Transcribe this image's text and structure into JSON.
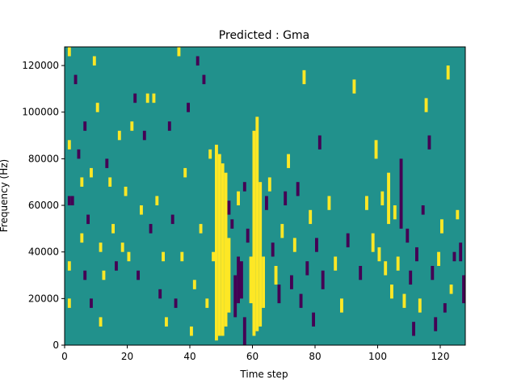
{
  "chart_data": {
    "type": "heatmap",
    "title": "Predicted : Gma",
    "xlabel": "Time step",
    "ylabel": "Frequency (Hz)",
    "xlim": [
      0,
      128
    ],
    "ylim": [
      0,
      128000
    ],
    "x_ticks": [
      0,
      20,
      40,
      60,
      80,
      100,
      120
    ],
    "y_ticks": [
      0,
      20000,
      40000,
      60000,
      80000,
      100000,
      120000
    ],
    "n_time_steps": 128,
    "n_freq_bins": 128,
    "cell_levels": [
      "background",
      "high",
      "low"
    ],
    "colors": {
      "background": "#21918c",
      "high": "#fde725",
      "low": "#440154"
    },
    "cells": [
      {
        "t": 48,
        "f0": 2000,
        "f1": 86000,
        "level": "high"
      },
      {
        "t": 49,
        "f0": 4000,
        "f1": 82000,
        "level": "high"
      },
      {
        "t": 50,
        "f0": 4000,
        "f1": 78000,
        "level": "high"
      },
      {
        "t": 51,
        "f0": 8000,
        "f1": 74000,
        "level": "high"
      },
      {
        "t": 52,
        "f0": 14000,
        "f1": 46000,
        "level": "high"
      },
      {
        "t": 55,
        "f0": 18000,
        "f1": 38000,
        "level": "low"
      },
      {
        "t": 56,
        "f0": 20000,
        "f1": 36000,
        "level": "low"
      },
      {
        "t": 57,
        "f0": 0,
        "f1": 12000,
        "level": "low"
      },
      {
        "t": 60,
        "f0": 4000,
        "f1": 92000,
        "level": "high"
      },
      {
        "t": 61,
        "f0": 6000,
        "f1": 98000,
        "level": "high"
      },
      {
        "t": 62,
        "f0": 8000,
        "f1": 70000,
        "level": "high"
      },
      {
        "t": 63,
        "f0": 16000,
        "f1": 38000,
        "level": "high"
      },
      {
        "t": 59,
        "f0": 18000,
        "f1": 38000,
        "level": "high"
      },
      {
        "t": 54,
        "f0": 12000,
        "f1": 30000,
        "level": "low"
      },
      {
        "t": 53,
        "f0": 50000,
        "f1": 54000,
        "level": "low"
      },
      {
        "t": 58,
        "f0": 44000,
        "f1": 50000,
        "level": "low"
      },
      {
        "t": 52,
        "f0": 56000,
        "f1": 62000,
        "level": "low"
      },
      {
        "t": 55,
        "f0": 60000,
        "f1": 66000,
        "level": "high"
      },
      {
        "t": 57,
        "f0": 66000,
        "f1": 70000,
        "level": "low"
      },
      {
        "t": 64,
        "f0": 58000,
        "f1": 64000,
        "level": "low"
      },
      {
        "t": 66,
        "f0": 38000,
        "f1": 44000,
        "level": "low"
      },
      {
        "t": 65,
        "f0": 66000,
        "f1": 72000,
        "level": "high"
      },
      {
        "t": 67,
        "f0": 26000,
        "f1": 34000,
        "level": "high"
      },
      {
        "t": 68,
        "f0": 18000,
        "f1": 26000,
        "level": "low"
      },
      {
        "t": 69,
        "f0": 46000,
        "f1": 52000,
        "level": "high"
      },
      {
        "t": 70,
        "f0": 60000,
        "f1": 66000,
        "level": "low"
      },
      {
        "t": 71,
        "f0": 76000,
        "f1": 82000,
        "level": "high"
      },
      {
        "t": 72,
        "f0": 24000,
        "f1": 30000,
        "level": "low"
      },
      {
        "t": 73,
        "f0": 40000,
        "f1": 46000,
        "level": "high"
      },
      {
        "t": 74,
        "f0": 64000,
        "f1": 70000,
        "level": "low"
      },
      {
        "t": 75,
        "f0": 16000,
        "f1": 22000,
        "level": "low"
      },
      {
        "t": 76,
        "f0": 112000,
        "f1": 118000,
        "level": "high"
      },
      {
        "t": 77,
        "f0": 30000,
        "f1": 36000,
        "level": "low"
      },
      {
        "t": 78,
        "f0": 52000,
        "f1": 58000,
        "level": "high"
      },
      {
        "t": 79,
        "f0": 8000,
        "f1": 14000,
        "level": "low"
      },
      {
        "t": 80,
        "f0": 40000,
        "f1": 46000,
        "level": "low"
      },
      {
        "t": 81,
        "f0": 84000,
        "f1": 90000,
        "level": "low"
      },
      {
        "t": 82,
        "f0": 24000,
        "f1": 32000,
        "level": "low"
      },
      {
        "t": 84,
        "f0": 58000,
        "f1": 64000,
        "level": "high"
      },
      {
        "t": 86,
        "f0": 32000,
        "f1": 38000,
        "level": "high"
      },
      {
        "t": 88,
        "f0": 14000,
        "f1": 20000,
        "level": "high"
      },
      {
        "t": 90,
        "f0": 42000,
        "f1": 48000,
        "level": "low"
      },
      {
        "t": 92,
        "f0": 108000,
        "f1": 114000,
        "level": "high"
      },
      {
        "t": 94,
        "f0": 28000,
        "f1": 34000,
        "level": "low"
      },
      {
        "t": 96,
        "f0": 58000,
        "f1": 64000,
        "level": "high"
      },
      {
        "t": 98,
        "f0": 40000,
        "f1": 48000,
        "level": "high"
      },
      {
        "t": 99,
        "f0": 80000,
        "f1": 88000,
        "level": "high"
      },
      {
        "t": 100,
        "f0": 36000,
        "f1": 42000,
        "level": "high"
      },
      {
        "t": 101,
        "f0": 60000,
        "f1": 66000,
        "level": "high"
      },
      {
        "t": 102,
        "f0": 30000,
        "f1": 36000,
        "level": "high"
      },
      {
        "t": 103,
        "f0": 52000,
        "f1": 74000,
        "level": "high"
      },
      {
        "t": 104,
        "f0": 20000,
        "f1": 26000,
        "level": "high"
      },
      {
        "t": 105,
        "f0": 54000,
        "f1": 60000,
        "level": "high"
      },
      {
        "t": 106,
        "f0": 32000,
        "f1": 38000,
        "level": "high"
      },
      {
        "t": 107,
        "f0": 50000,
        "f1": 80000,
        "level": "low"
      },
      {
        "t": 108,
        "f0": 16000,
        "f1": 22000,
        "level": "high"
      },
      {
        "t": 109,
        "f0": 44000,
        "f1": 50000,
        "level": "low"
      },
      {
        "t": 110,
        "f0": 26000,
        "f1": 32000,
        "level": "low"
      },
      {
        "t": 111,
        "f0": 4000,
        "f1": 10000,
        "level": "low"
      },
      {
        "t": 112,
        "f0": 36000,
        "f1": 42000,
        "level": "low"
      },
      {
        "t": 113,
        "f0": 14000,
        "f1": 20000,
        "level": "high"
      },
      {
        "t": 114,
        "f0": 56000,
        "f1": 60000,
        "level": "low"
      },
      {
        "t": 115,
        "f0": 100000,
        "f1": 106000,
        "level": "high"
      },
      {
        "t": 116,
        "f0": 84000,
        "f1": 90000,
        "level": "low"
      },
      {
        "t": 117,
        "f0": 28000,
        "f1": 34000,
        "level": "low"
      },
      {
        "t": 118,
        "f0": 6000,
        "f1": 12000,
        "level": "low"
      },
      {
        "t": 119,
        "f0": 34000,
        "f1": 40000,
        "level": "high"
      },
      {
        "t": 120,
        "f0": 48000,
        "f1": 54000,
        "level": "high"
      },
      {
        "t": 121,
        "f0": 14000,
        "f1": 18000,
        "level": "low"
      },
      {
        "t": 122,
        "f0": 114000,
        "f1": 120000,
        "level": "high"
      },
      {
        "t": 123,
        "f0": 22000,
        "f1": 26000,
        "level": "high"
      },
      {
        "t": 124,
        "f0": 36000,
        "f1": 40000,
        "level": "low"
      },
      {
        "t": 125,
        "f0": 54000,
        "f1": 58000,
        "level": "high"
      },
      {
        "t": 126,
        "f0": 36000,
        "f1": 44000,
        "level": "low"
      },
      {
        "t": 127,
        "f0": 18000,
        "f1": 30000,
        "level": "low"
      },
      {
        "t": 1,
        "f0": 124000,
        "f1": 128000,
        "level": "high"
      },
      {
        "t": 1,
        "f0": 84000,
        "f1": 88000,
        "level": "high"
      },
      {
        "t": 1,
        "f0": 60000,
        "f1": 64000,
        "level": "low"
      },
      {
        "t": 2,
        "f0": 60000,
        "f1": 64000,
        "level": "low"
      },
      {
        "t": 1,
        "f0": 32000,
        "f1": 36000,
        "level": "high"
      },
      {
        "t": 1,
        "f0": 16000,
        "f1": 20000,
        "level": "high"
      },
      {
        "t": 3,
        "f0": 112000,
        "f1": 116000,
        "level": "low"
      },
      {
        "t": 4,
        "f0": 80000,
        "f1": 84000,
        "level": "low"
      },
      {
        "t": 5,
        "f0": 68000,
        "f1": 72000,
        "level": "high"
      },
      {
        "t": 5,
        "f0": 44000,
        "f1": 48000,
        "level": "high"
      },
      {
        "t": 6,
        "f0": 92000,
        "f1": 96000,
        "level": "low"
      },
      {
        "t": 6,
        "f0": 28000,
        "f1": 32000,
        "level": "low"
      },
      {
        "t": 7,
        "f0": 52000,
        "f1": 56000,
        "level": "low"
      },
      {
        "t": 8,
        "f0": 16000,
        "f1": 20000,
        "level": "low"
      },
      {
        "t": 8,
        "f0": 72000,
        "f1": 76000,
        "level": "high"
      },
      {
        "t": 9,
        "f0": 120000,
        "f1": 124000,
        "level": "high"
      },
      {
        "t": 10,
        "f0": 100000,
        "f1": 104000,
        "level": "high"
      },
      {
        "t": 11,
        "f0": 40000,
        "f1": 44000,
        "level": "high"
      },
      {
        "t": 11,
        "f0": 8000,
        "f1": 12000,
        "level": "high"
      },
      {
        "t": 12,
        "f0": 28000,
        "f1": 32000,
        "level": "high"
      },
      {
        "t": 13,
        "f0": 76000,
        "f1": 80000,
        "level": "low"
      },
      {
        "t": 14,
        "f0": 68000,
        "f1": 72000,
        "level": "high"
      },
      {
        "t": 15,
        "f0": 48000,
        "f1": 52000,
        "level": "high"
      },
      {
        "t": 16,
        "f0": 32000,
        "f1": 36000,
        "level": "low"
      },
      {
        "t": 17,
        "f0": 88000,
        "f1": 92000,
        "level": "high"
      },
      {
        "t": 18,
        "f0": 40000,
        "f1": 44000,
        "level": "high"
      },
      {
        "t": 19,
        "f0": 64000,
        "f1": 68000,
        "level": "high"
      },
      {
        "t": 20,
        "f0": 36000,
        "f1": 40000,
        "level": "high"
      },
      {
        "t": 21,
        "f0": 92000,
        "f1": 96000,
        "level": "high"
      },
      {
        "t": 22,
        "f0": 104000,
        "f1": 108000,
        "level": "low"
      },
      {
        "t": 23,
        "f0": 28000,
        "f1": 32000,
        "level": "low"
      },
      {
        "t": 24,
        "f0": 56000,
        "f1": 60000,
        "level": "high"
      },
      {
        "t": 25,
        "f0": 88000,
        "f1": 92000,
        "level": "low"
      },
      {
        "t": 26,
        "f0": 104000,
        "f1": 108000,
        "level": "high"
      },
      {
        "t": 27,
        "f0": 48000,
        "f1": 52000,
        "level": "low"
      },
      {
        "t": 28,
        "f0": 104000,
        "f1": 108000,
        "level": "high"
      },
      {
        "t": 29,
        "f0": 60000,
        "f1": 64000,
        "level": "high"
      },
      {
        "t": 30,
        "f0": 20000,
        "f1": 24000,
        "level": "low"
      },
      {
        "t": 31,
        "f0": 36000,
        "f1": 40000,
        "level": "high"
      },
      {
        "t": 32,
        "f0": 8000,
        "f1": 12000,
        "level": "high"
      },
      {
        "t": 33,
        "f0": 92000,
        "f1": 96000,
        "level": "low"
      },
      {
        "t": 34,
        "f0": 52000,
        "f1": 56000,
        "level": "low"
      },
      {
        "t": 35,
        "f0": 16000,
        "f1": 20000,
        "level": "low"
      },
      {
        "t": 36,
        "f0": 124000,
        "f1": 128000,
        "level": "high"
      },
      {
        "t": 37,
        "f0": 36000,
        "f1": 40000,
        "level": "high"
      },
      {
        "t": 38,
        "f0": 72000,
        "f1": 76000,
        "level": "high"
      },
      {
        "t": 39,
        "f0": 100000,
        "f1": 104000,
        "level": "low"
      },
      {
        "t": 40,
        "f0": 4000,
        "f1": 8000,
        "level": "high"
      },
      {
        "t": 41,
        "f0": 24000,
        "f1": 28000,
        "level": "high"
      },
      {
        "t": 42,
        "f0": 120000,
        "f1": 124000,
        "level": "low"
      },
      {
        "t": 43,
        "f0": 48000,
        "f1": 52000,
        "level": "high"
      },
      {
        "t": 44,
        "f0": 112000,
        "f1": 116000,
        "level": "low"
      },
      {
        "t": 45,
        "f0": 16000,
        "f1": 20000,
        "level": "high"
      },
      {
        "t": 46,
        "f0": 80000,
        "f1": 84000,
        "level": "high"
      },
      {
        "t": 47,
        "f0": 36000,
        "f1": 40000,
        "level": "high"
      }
    ]
  }
}
